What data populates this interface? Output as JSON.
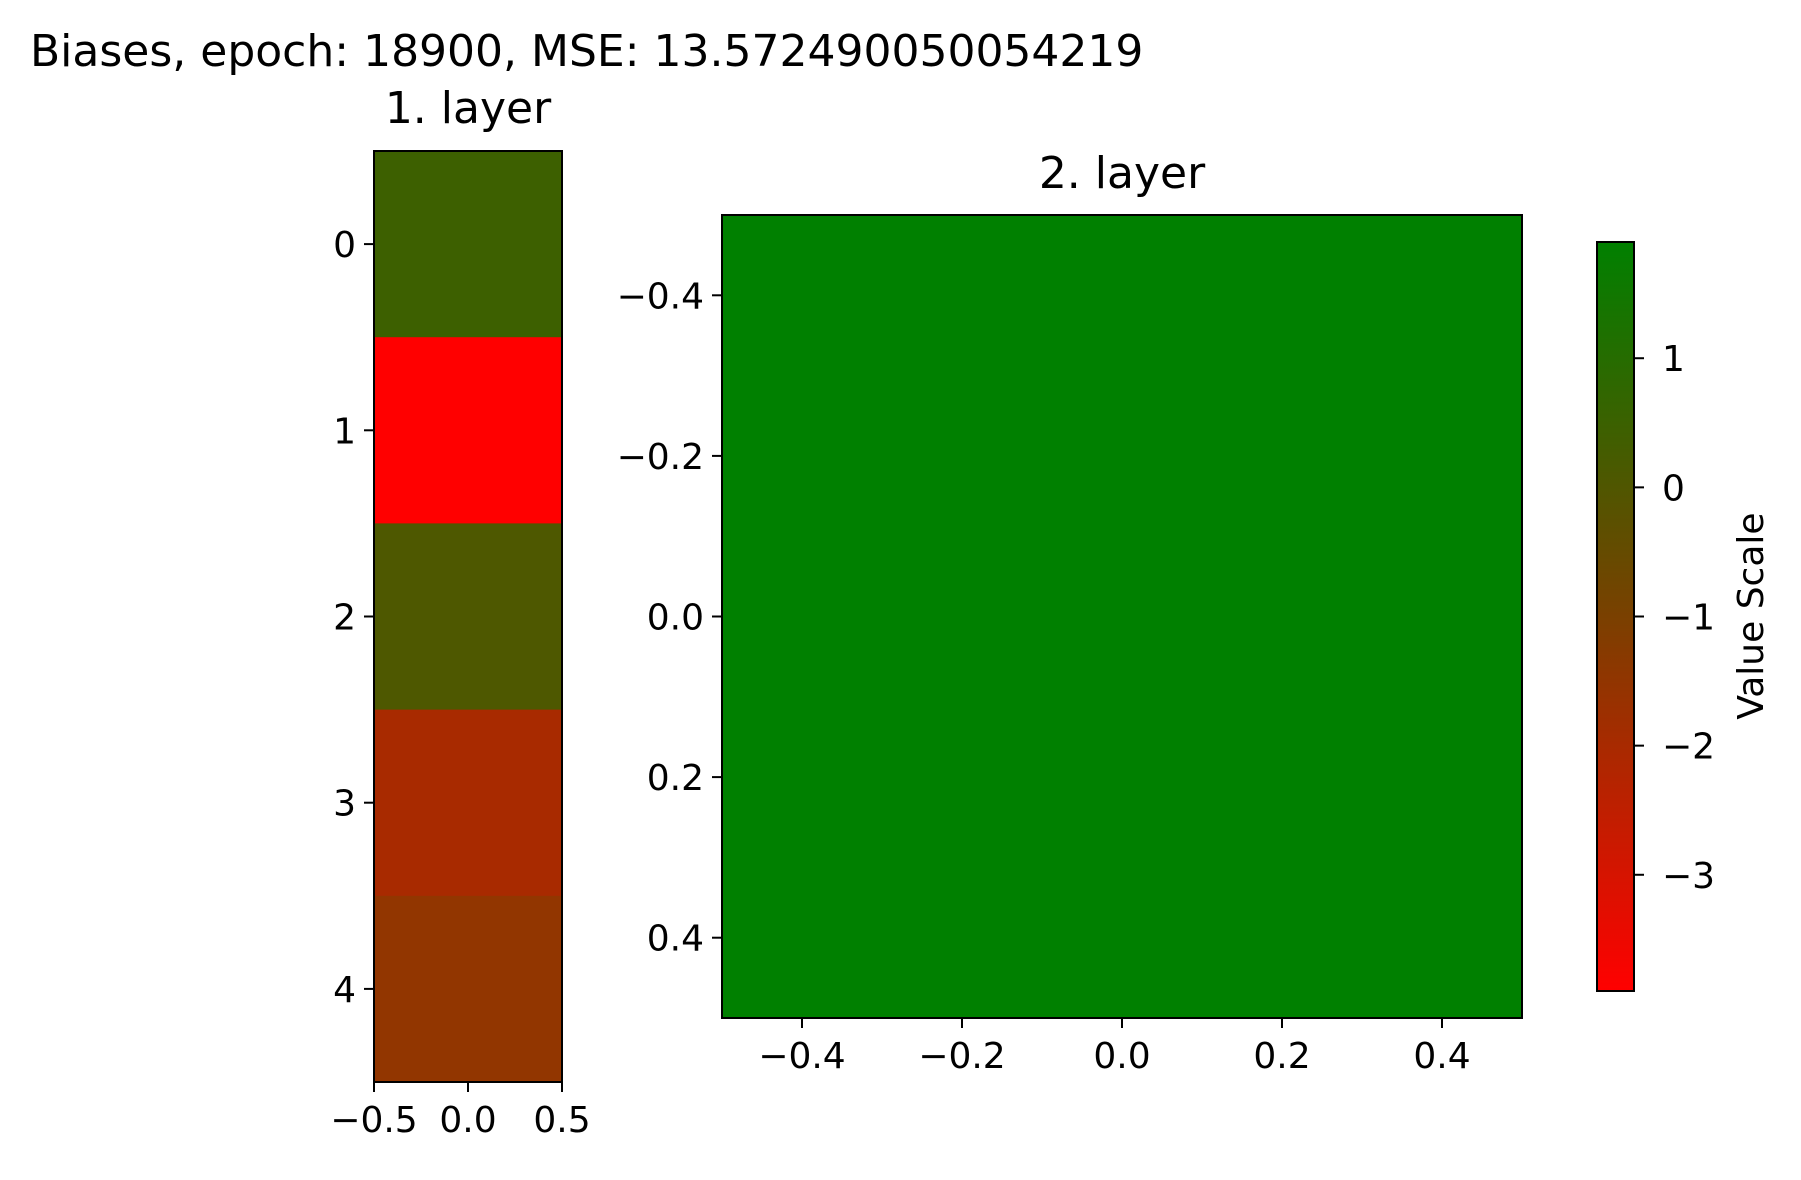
{
  "figure": {
    "suptitle": "Biases, epoch: 18900, MSE: 13.572490050054219"
  },
  "chart_data": [
    {
      "type": "heatmap",
      "title": "1. layer",
      "xlabel": "",
      "ylabel": "",
      "rows": 5,
      "cols": 1,
      "values": [
        0.5,
        -3.9,
        0.3,
        -1.7,
        -1.2
      ],
      "cell_colors": [
        "#3d6000",
        "#ff0000",
        "#4e5800",
        "#a82a00",
        "#923600"
      ],
      "xlim": [
        -0.5,
        0.5
      ],
      "ylim": [
        4.5,
        -0.5
      ],
      "xticks": [
        {
          "value": -0.5,
          "label": "−0.5"
        },
        {
          "value": 0.0,
          "label": "0.0"
        },
        {
          "value": 0.5,
          "label": "0.5"
        }
      ],
      "yticks": [
        {
          "value": 0,
          "label": "0"
        },
        {
          "value": 1,
          "label": "1"
        },
        {
          "value": 2,
          "label": "2"
        },
        {
          "value": 3,
          "label": "3"
        },
        {
          "value": 4,
          "label": "4"
        }
      ],
      "grid": false
    },
    {
      "type": "heatmap",
      "title": "2. layer",
      "xlabel": "",
      "ylabel": "",
      "rows": 1,
      "cols": 1,
      "values": [
        1.9
      ],
      "cell_colors": [
        "#008000"
      ],
      "xlim": [
        -0.5,
        0.5
      ],
      "ylim": [
        0.5,
        -0.5
      ],
      "xticks": [
        {
          "value": -0.4,
          "label": "−0.4"
        },
        {
          "value": -0.2,
          "label": "−0.2"
        },
        {
          "value": 0.0,
          "label": "0.0"
        },
        {
          "value": 0.2,
          "label": "0.2"
        },
        {
          "value": 0.4,
          "label": "0.4"
        }
      ],
      "yticks": [
        {
          "value": -0.4,
          "label": "−0.4"
        },
        {
          "value": -0.2,
          "label": "−0.2"
        },
        {
          "value": 0.0,
          "label": "0.0"
        },
        {
          "value": 0.2,
          "label": "0.2"
        },
        {
          "value": 0.4,
          "label": "0.4"
        }
      ],
      "grid": false
    }
  ],
  "colorbar": {
    "label": "Value Scale",
    "range": [
      -3.9,
      1.9
    ],
    "color_min": "#ff0000",
    "color_mid": "#7a4000",
    "color_max": "#008000",
    "ticks": [
      {
        "value": 1,
        "label": "1"
      },
      {
        "value": 0,
        "label": "0"
      },
      {
        "value": -1,
        "label": "−1"
      },
      {
        "value": -2,
        "label": "−2"
      },
      {
        "value": -3,
        "label": "−3"
      }
    ]
  }
}
